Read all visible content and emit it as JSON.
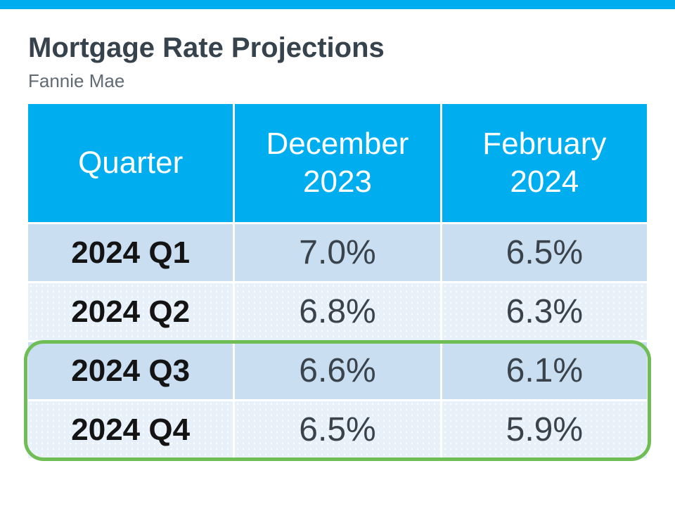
{
  "page": {
    "title": "Mortgage Rate Projections",
    "subtitle": "Fannie Mae"
  },
  "table": {
    "columns": [
      "Quarter",
      "December 2023",
      "February 2024"
    ],
    "rows": [
      {
        "cells": [
          "2024 Q1",
          "7.0%",
          "6.5%"
        ]
      },
      {
        "cells": [
          "2024 Q2",
          "6.8%",
          "6.3%"
        ]
      },
      {
        "cells": [
          "2024 Q3",
          "6.6%",
          "6.1%"
        ]
      },
      {
        "cells": [
          "2024 Q4",
          "6.5%",
          "5.9%"
        ]
      }
    ],
    "highlighted_rows": [
      "2024 Q3",
      "2024 Q4"
    ]
  },
  "chart_data": {
    "type": "table",
    "title": "Mortgage Rate Projections",
    "subtitle": "Fannie Mae",
    "columns": [
      "Quarter",
      "December 2023",
      "February 2024"
    ],
    "rows": [
      [
        "2024 Q1",
        "7.0%",
        "6.5%"
      ],
      [
        "2024 Q2",
        "6.8%",
        "6.3%"
      ],
      [
        "2024 Q3",
        "6.6%",
        "6.1%"
      ],
      [
        "2024 Q4",
        "6.5%",
        "5.9%"
      ]
    ],
    "series": [
      {
        "name": "December 2023",
        "values": [
          7.0,
          6.8,
          6.6,
          6.5
        ]
      },
      {
        "name": "February 2024",
        "values": [
          6.5,
          6.3,
          6.1,
          5.9
        ]
      }
    ],
    "categories": [
      "2024 Q1",
      "2024 Q2",
      "2024 Q3",
      "2024 Q4"
    ],
    "annotations": [
      "Green rounded outline highlights the 2024 Q3 and 2024 Q4 rows"
    ]
  },
  "colors": {
    "accent_cyan": "#00AEEF",
    "row_dark_blue": "#CADEF2",
    "row_light_blue": "#E8F1F9",
    "highlight_green": "#6FBE55",
    "title_text": "#36424C",
    "subtitle_text": "#5F6A74",
    "value_text": "#3A434B"
  }
}
